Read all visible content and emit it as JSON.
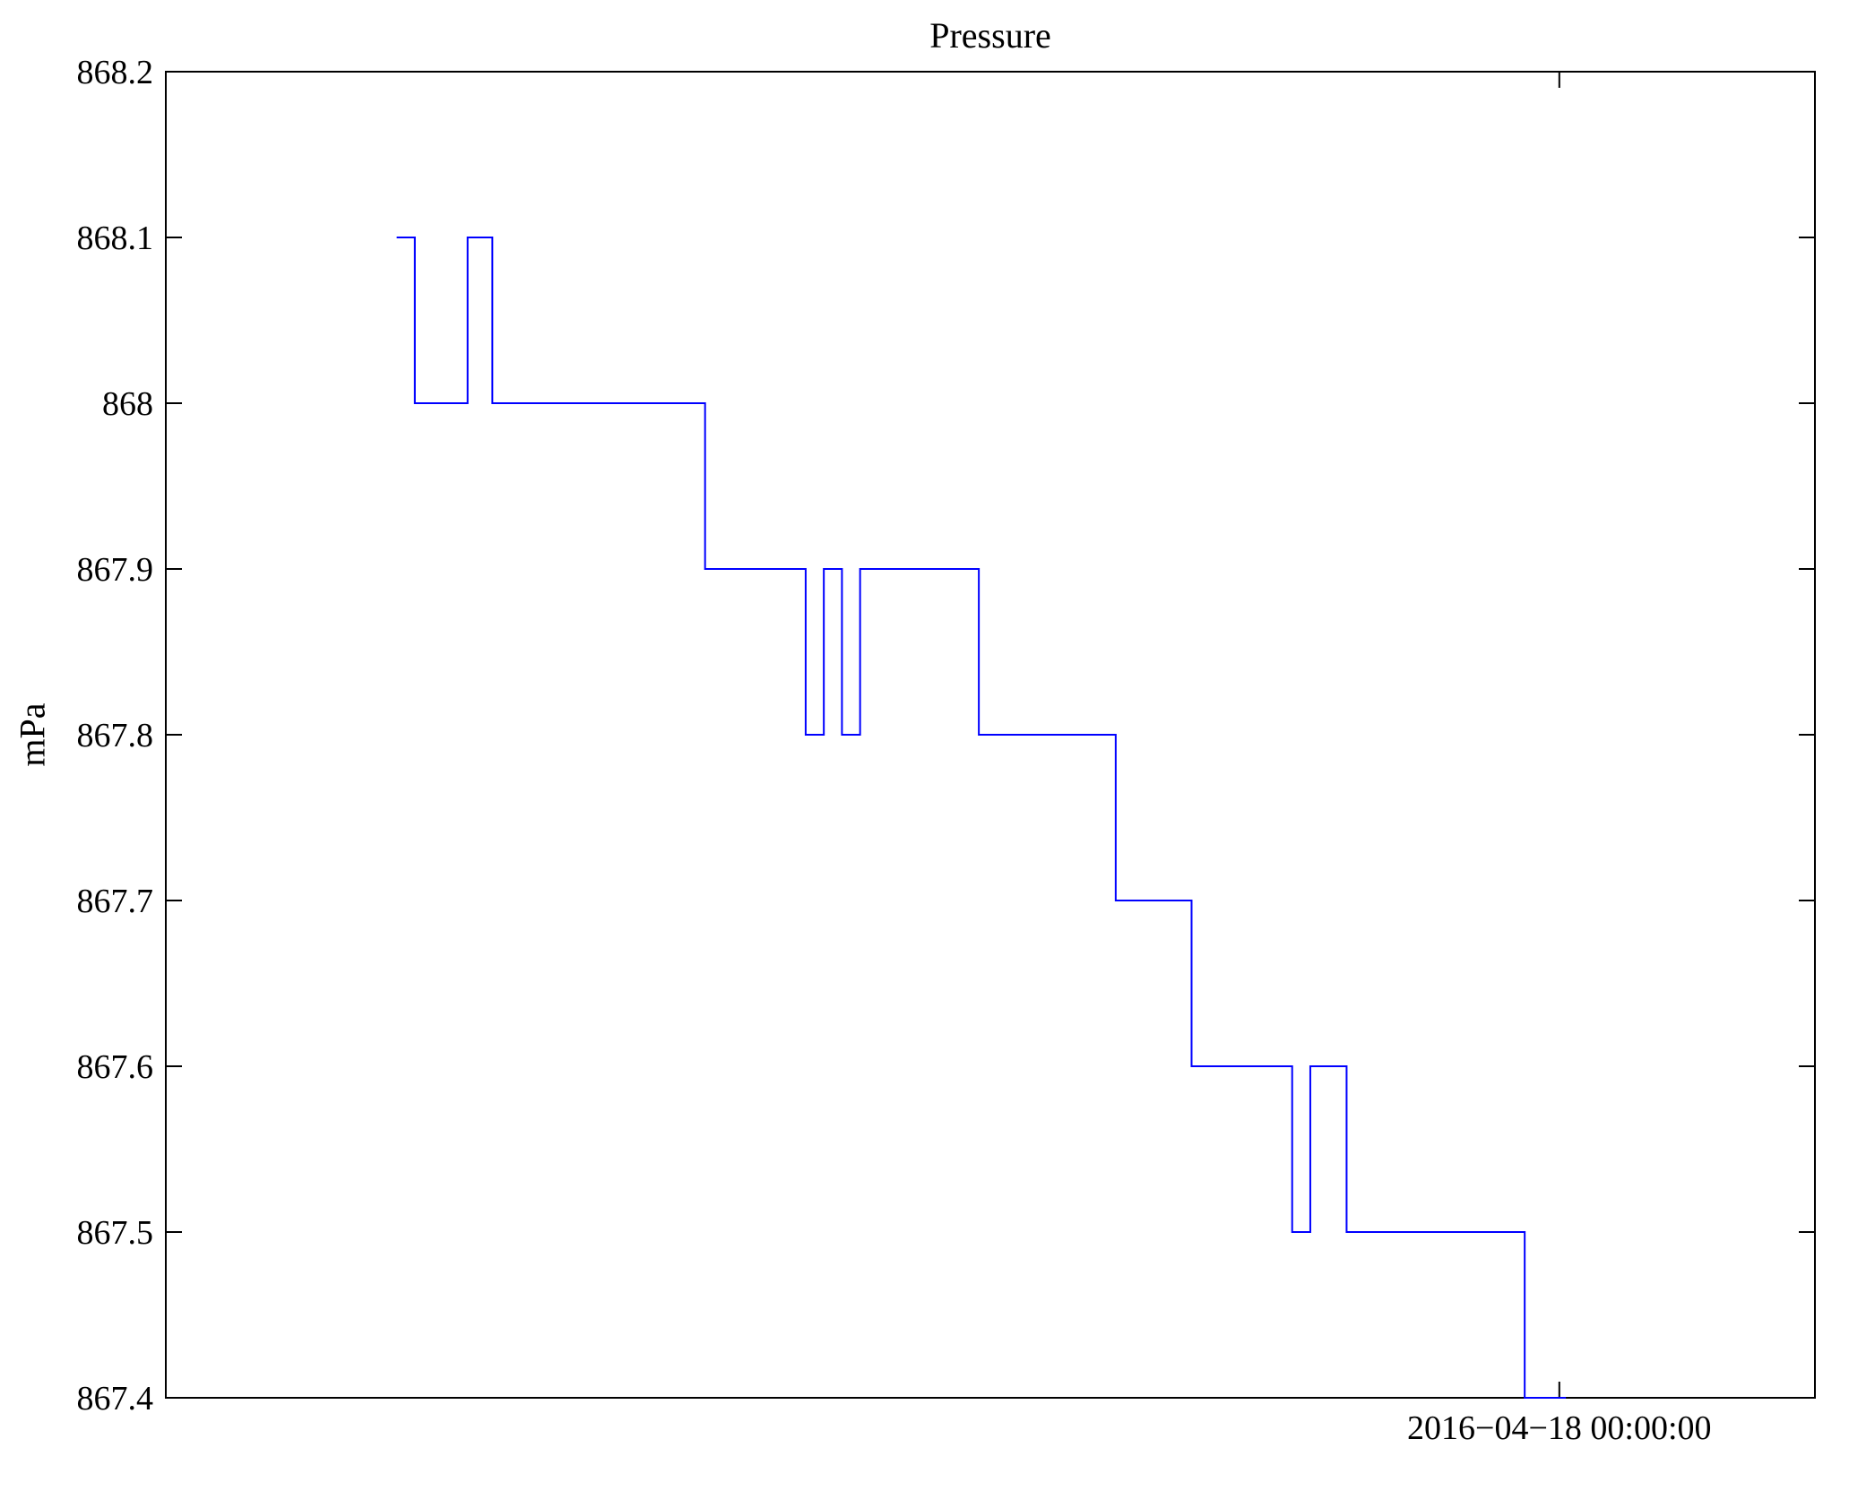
{
  "figure": {
    "background": "#ffffff"
  },
  "chart_data": {
    "type": "line",
    "style": "step",
    "title": "Pressure",
    "ylabel": "mPa",
    "xlabel": "",
    "line_color": "#0000ff",
    "axis_color": "#000000",
    "grid": false,
    "legend": "none",
    "ylim": [
      867.4,
      868.2
    ],
    "yticks": [
      {
        "value": 867.4,
        "label": "867.4"
      },
      {
        "value": 867.5,
        "label": "867.5"
      },
      {
        "value": 867.6,
        "label": "867.6"
      },
      {
        "value": 867.7,
        "label": "867.7"
      },
      {
        "value": 867.8,
        "label": "867.8"
      },
      {
        "value": 867.9,
        "label": "867.9"
      },
      {
        "value": 868.0,
        "label": "868"
      },
      {
        "value": 868.1,
        "label": "868.1"
      },
      {
        "value": 868.2,
        "label": "868.2"
      }
    ],
    "xlim": [
      0,
      1
    ],
    "xticks": [
      {
        "pos": 0.845,
        "label": "2016−04−18 00:00:00"
      }
    ],
    "x_axis_note": "x positions normalized 0-1 across plot width; single labeled time tick",
    "series": [
      {
        "name": "Pressure",
        "points": [
          [
            0.14,
            868.1
          ],
          [
            0.151,
            868.1
          ],
          [
            0.151,
            868.0
          ],
          [
            0.183,
            868.0
          ],
          [
            0.183,
            868.1
          ],
          [
            0.198,
            868.1
          ],
          [
            0.198,
            868.0
          ],
          [
            0.327,
            868.0
          ],
          [
            0.327,
            867.9
          ],
          [
            0.388,
            867.9
          ],
          [
            0.388,
            867.8
          ],
          [
            0.399,
            867.8
          ],
          [
            0.399,
            867.9
          ],
          [
            0.41,
            867.9
          ],
          [
            0.41,
            867.8
          ],
          [
            0.421,
            867.8
          ],
          [
            0.421,
            867.9
          ],
          [
            0.493,
            867.9
          ],
          [
            0.493,
            867.8
          ],
          [
            0.576,
            867.8
          ],
          [
            0.576,
            867.7
          ],
          [
            0.622,
            867.7
          ],
          [
            0.622,
            867.6
          ],
          [
            0.683,
            867.6
          ],
          [
            0.683,
            867.5
          ],
          [
            0.694,
            867.5
          ],
          [
            0.694,
            867.6
          ],
          [
            0.716,
            867.6
          ],
          [
            0.716,
            867.5
          ],
          [
            0.824,
            867.5
          ],
          [
            0.824,
            867.4
          ],
          [
            0.849,
            867.4
          ]
        ]
      }
    ]
  }
}
